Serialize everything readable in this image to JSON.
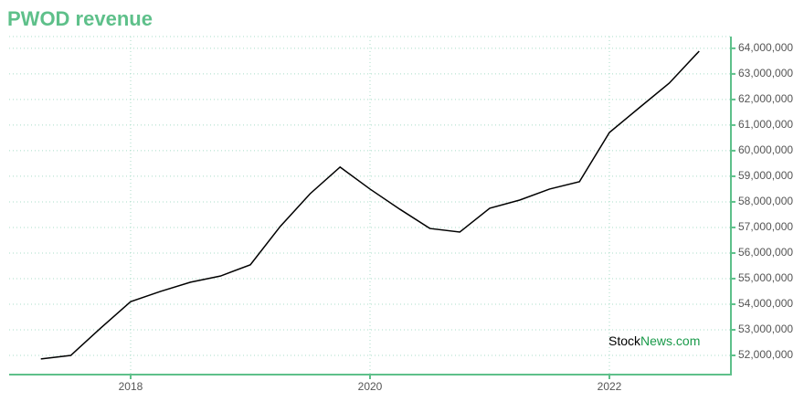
{
  "chart_data": {
    "type": "line",
    "title": "PWOD revenue",
    "x": [
      2017.25,
      2017.5,
      2017.75,
      2018,
      2018.25,
      2018.5,
      2018.75,
      2019,
      2019.25,
      2019.5,
      2019.75,
      2020,
      2020.25,
      2020.5,
      2020.75,
      2021,
      2021.25,
      2021.5,
      2021.75,
      2022,
      2022.25,
      2022.5,
      2022.75
    ],
    "series": [
      {
        "color": "#000000",
        "values": [
          51860000,
          52000000,
          53070000,
          54100000,
          54500000,
          54860000,
          55100000,
          55540000,
          57040000,
          58320000,
          59360000,
          58500000,
          57710000,
          56960000,
          56820000,
          57750000,
          58070000,
          58500000,
          58790000,
          60710000,
          61680000,
          62640000,
          63890000
        ]
      }
    ],
    "xlim": [
      2016.985,
      2023.015
    ],
    "xticks": [
      2018,
      2020,
      2022
    ],
    "ylim": [
      51250000,
      64460000
    ],
    "yticks": [
      {
        "value": 52000000,
        "label": "52,000,000"
      },
      {
        "value": 53000000,
        "label": "53,000,000"
      },
      {
        "value": 54000000,
        "label": "54,000,000"
      },
      {
        "value": 55000000,
        "label": "55,000,000"
      },
      {
        "value": 56000000,
        "label": "56,000,000"
      },
      {
        "value": 57000000,
        "label": "57,000,000"
      },
      {
        "value": 58000000,
        "label": "58,000,000"
      },
      {
        "value": 59000000,
        "label": "59,000,000"
      },
      {
        "value": 60000000,
        "label": "60,000,000"
      },
      {
        "value": 61000000,
        "label": "61,000,000"
      },
      {
        "value": 62000000,
        "label": "62,000,000"
      },
      {
        "value": 63000000,
        "label": "63,000,000"
      },
      {
        "value": 64000000,
        "label": "64,000,000"
      }
    ],
    "grid": true,
    "axis_color": "#5ec08a",
    "watermark": [
      "Stock",
      "News.com"
    ]
  }
}
